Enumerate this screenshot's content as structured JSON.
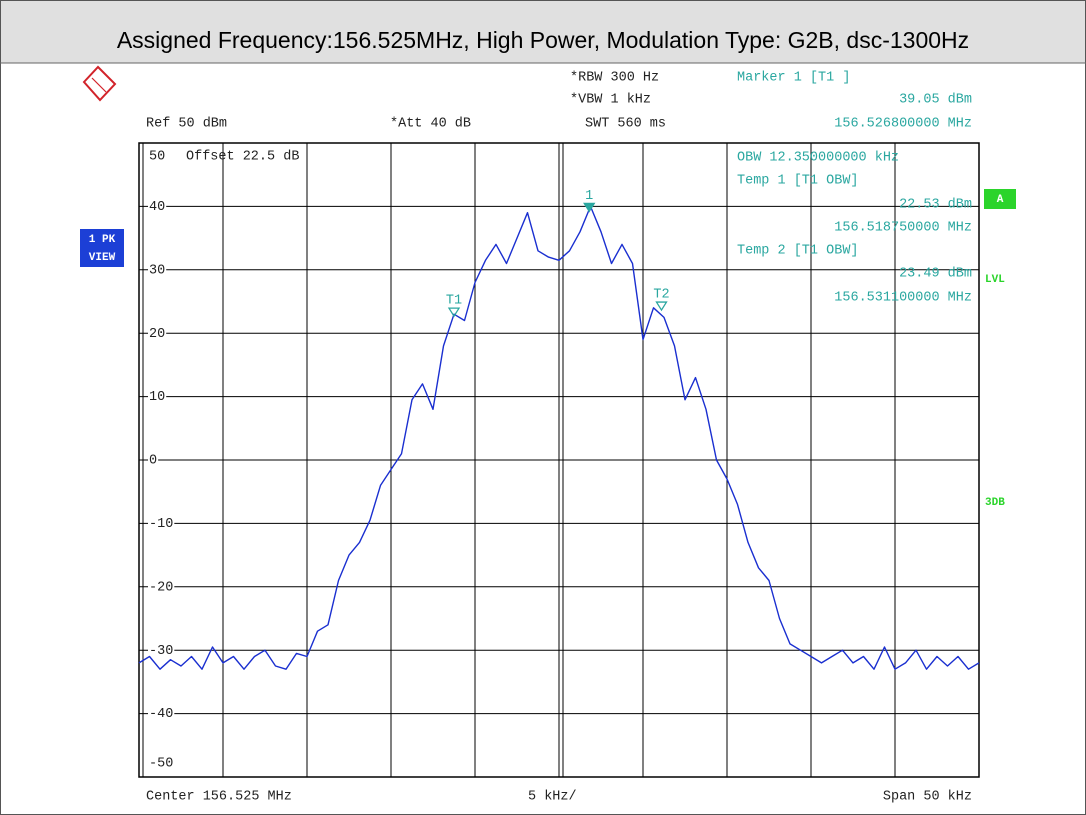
{
  "chart_data": {
    "type": "line",
    "title": "Assigned Frequency:156.525MHz, High Power, Modulation Type: G2B, dsc-1300Hz",
    "color": "#1a2fd0",
    "xlim": [
      156.5,
      156.55
    ],
    "ylim": [
      -50,
      50
    ],
    "yticks": [
      50,
      40,
      30,
      20,
      10,
      0,
      -10,
      -20,
      -30,
      -40,
      -50
    ],
    "grid": true,
    "values": [
      -32,
      -31,
      -33,
      -31.5,
      -32.5,
      -31,
      -33,
      -29.5,
      -32,
      -31,
      -33,
      -31,
      -30,
      -32.5,
      -33,
      -30.5,
      -31,
      -27,
      -26,
      -19,
      -15,
      -13,
      -9.5,
      -4,
      -1.5,
      1,
      9.5,
      12,
      8,
      18,
      23,
      22,
      28,
      31.5,
      34,
      31,
      35,
      39,
      33,
      32,
      31.5,
      33,
      36,
      40,
      36,
      31,
      34,
      31,
      19,
      24,
      22.5,
      18,
      9.5,
      13,
      8,
      0,
      -3,
      -7,
      -13,
      -17,
      -19,
      -25,
      -29,
      -30,
      -31,
      -32,
      -31,
      -30,
      -32,
      -31,
      -33,
      -29.5,
      -33,
      -32,
      -30,
      -33,
      -31,
      -32.5,
      -31,
      -33,
      -32
    ],
    "markers": [
      {
        "label": "1",
        "freq": 156.5268,
        "level": 39.05
      },
      {
        "label": "T1",
        "freq": 156.51875,
        "level": 22.53
      },
      {
        "label": "T2",
        "freq": 156.5311,
        "level": 23.49
      }
    ],
    "settings": {
      "rbw": "*RBW 300 Hz",
      "vbw": "*VBW 1 kHz",
      "swt": "SWT 560 ms",
      "ref": "Ref  50 dBm",
      "att": "*Att  40 dB",
      "offset": "Offset  22.5 dB"
    },
    "readout": {
      "marker_title": "Marker 1 [T1 ]",
      "marker_level": "39.05 dBm",
      "marker_freq": "156.526800000 MHz",
      "obw": "OBW 12.350000000 kHz",
      "temp1_title": "Temp 1 [T1 OBW]",
      "temp1_level": "22.53 dBm",
      "temp1_freq": "156.518750000 MHz",
      "temp2_title": "Temp 2 [T1 OBW]",
      "temp2_level": "23.49 dBm",
      "temp2_freq": "156.531100000 MHz"
    },
    "footer": {
      "center": "Center 156.525 MHz",
      "div": "5 kHz/",
      "span": "Span 50 kHz"
    },
    "side": {
      "trace1": "1 PK",
      "trace2": "VIEW",
      "a": "A",
      "lvl": "LVL",
      "db": "3DB"
    }
  }
}
